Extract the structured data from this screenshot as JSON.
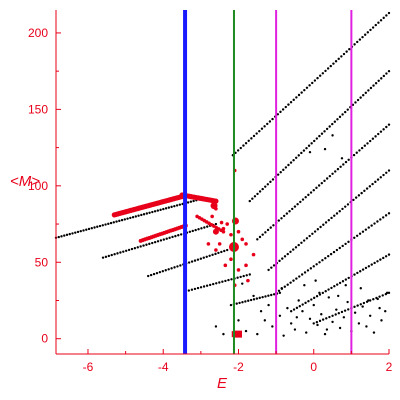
{
  "chart_data": {
    "type": "scatter",
    "title": "",
    "xlabel": "E",
    "ylabel": "<M>",
    "xlim": [
      -6.85,
      2.0
    ],
    "ylim": [
      -10,
      215
    ],
    "xticks": [
      -6,
      -4,
      -2,
      0,
      2
    ],
    "yticks": [
      0,
      50,
      100,
      150,
      200
    ],
    "grid": false,
    "axis_color": "#e8001a",
    "vlines": [
      {
        "x": -3.42,
        "color": "#1a1aff",
        "width": 4
      },
      {
        "x": -2.12,
        "color": "#1f8a1f",
        "width": 2
      },
      {
        "x": -1.0,
        "color": "#e020e0",
        "width": 2
      },
      {
        "x": 1.0,
        "color": "#e020e0",
        "width": 2
      }
    ],
    "series": [
      {
        "color": "#000000",
        "style": "band",
        "bands": [
          {
            "x0": -6.85,
            "x1": -2.9,
            "y0": 66,
            "y1": 92,
            "n": 55
          },
          {
            "x0": -5.6,
            "x1": -2.6,
            "y0": 53,
            "y1": 75,
            "n": 40
          },
          {
            "x0": -4.4,
            "x1": -2.3,
            "y0": 41,
            "y1": 58,
            "n": 28
          },
          {
            "x0": -3.4,
            "x1": -1.7,
            "y0": 31,
            "y1": 42,
            "n": 22
          },
          {
            "x0": -2.2,
            "x1": -0.9,
            "y0": 22,
            "y1": 30,
            "n": 18
          },
          {
            "x0": -2.15,
            "x1": 2.0,
            "y0": 120,
            "y1": 213,
            "n": 60
          },
          {
            "x0": -1.7,
            "x1": 2.0,
            "y0": 90,
            "y1": 175,
            "n": 55
          },
          {
            "x0": -1.5,
            "x1": 2.0,
            "y0": 65,
            "y1": 140,
            "n": 50
          },
          {
            "x0": -1.2,
            "x1": 2.0,
            "y0": 45,
            "y1": 110,
            "n": 45
          },
          {
            "x0": -1.0,
            "x1": 2.0,
            "y0": 30,
            "y1": 82,
            "n": 40
          },
          {
            "x0": -0.6,
            "x1": 2.0,
            "y0": 18,
            "y1": 55,
            "n": 35
          },
          {
            "x0": 0.0,
            "x1": 2.0,
            "y0": 10,
            "y1": 30,
            "n": 25
          }
        ],
        "scatter": [
          [
            -1.8,
            5
          ],
          [
            -1.5,
            3
          ],
          [
            -1.3,
            12
          ],
          [
            -1.1,
            8
          ],
          [
            -0.9,
            15
          ],
          [
            -0.8,
            2
          ],
          [
            -0.7,
            20
          ],
          [
            -0.6,
            10
          ],
          [
            -0.5,
            6
          ],
          [
            -0.4,
            25
          ],
          [
            -0.3,
            18
          ],
          [
            -0.2,
            4
          ],
          [
            -0.1,
            13
          ],
          [
            0.0,
            22
          ],
          [
            0.1,
            9
          ],
          [
            0.2,
            16
          ],
          [
            0.3,
            3
          ],
          [
            0.4,
            27
          ],
          [
            0.5,
            11
          ],
          [
            0.6,
            19
          ],
          [
            0.7,
            7
          ],
          [
            0.8,
            14
          ],
          [
            0.9,
            24
          ],
          [
            1.0,
            5
          ],
          [
            1.1,
            17
          ],
          [
            1.2,
            10
          ],
          [
            1.3,
            21
          ],
          [
            1.4,
            8
          ],
          [
            1.5,
            15
          ],
          [
            1.6,
            4
          ],
          [
            1.7,
            26
          ],
          [
            1.8,
            12
          ],
          [
            1.9,
            18
          ],
          [
            -1.6,
            28
          ],
          [
            -1.2,
            22
          ],
          [
            -0.85,
            33
          ],
          [
            -0.45,
            14
          ],
          [
            0.15,
            30
          ],
          [
            0.65,
            28
          ],
          [
            1.25,
            33
          ],
          [
            1.75,
            20
          ],
          [
            -1.9,
            36
          ],
          [
            -1.4,
            18
          ],
          [
            -0.25,
            35
          ],
          [
            0.35,
            6
          ],
          [
            0.85,
            35
          ],
          [
            1.45,
            25
          ],
          [
            -2.0,
            12
          ],
          [
            0.05,
            38
          ],
          [
            1.95,
            30
          ],
          [
            0.3,
            124
          ],
          [
            0.5,
            133
          ],
          [
            -0.1,
            122
          ],
          [
            0.75,
            118
          ],
          [
            -2.4,
            3
          ],
          [
            -2.6,
            8
          ]
        ]
      },
      {
        "color": "#e8001a",
        "style": "band",
        "bands": [
          {
            "x0": -5.3,
            "x1": -3.5,
            "y0": 81,
            "y1": 93,
            "n": 42,
            "size": 2.6
          },
          {
            "x0": -3.5,
            "x1": -2.6,
            "y0": 94,
            "y1": 90,
            "n": 20,
            "size": 2.6
          },
          {
            "x0": -4.6,
            "x1": -3.4,
            "y0": 64,
            "y1": 74,
            "n": 22,
            "size": 2.0
          },
          {
            "x0": -3.1,
            "x1": -2.4,
            "y0": 80,
            "y1": 70,
            "n": 12,
            "size": 1.8
          }
        ],
        "scatter": [
          [
            -2.6,
            85
          ],
          [
            -2.7,
            80
          ],
          [
            -2.4,
            72
          ],
          [
            -2.3,
            75
          ],
          [
            -2.2,
            68
          ],
          [
            -2.0,
            70
          ],
          [
            -1.9,
            65
          ],
          [
            -2.5,
            62
          ],
          [
            -2.45,
            76
          ],
          [
            -2.8,
            62
          ],
          [
            -2.1,
            110
          ],
          [
            -1.8,
            62
          ],
          [
            -2.6,
            58
          ],
          [
            -2.2,
            52
          ],
          [
            -2.35,
            48
          ],
          [
            -1.6,
            55
          ],
          [
            -1.8,
            48
          ],
          [
            -2.0,
            45
          ],
          [
            -1.75,
            38
          ],
          [
            -2.1,
            35
          ]
        ],
        "markers": [
          {
            "x": -2.12,
            "y": 60,
            "size": 5
          },
          {
            "x": -2.65,
            "y": 87,
            "size": 3.5
          },
          {
            "x": -2.08,
            "y": 77,
            "size": 3.5
          },
          {
            "x": -2.6,
            "y": 70,
            "size": 3
          },
          {
            "x": -2.0,
            "y": 3,
            "size": 3.5,
            "square": true
          },
          {
            "x": -2.1,
            "y": 3,
            "size": 3,
            "square": true
          }
        ]
      }
    ]
  }
}
